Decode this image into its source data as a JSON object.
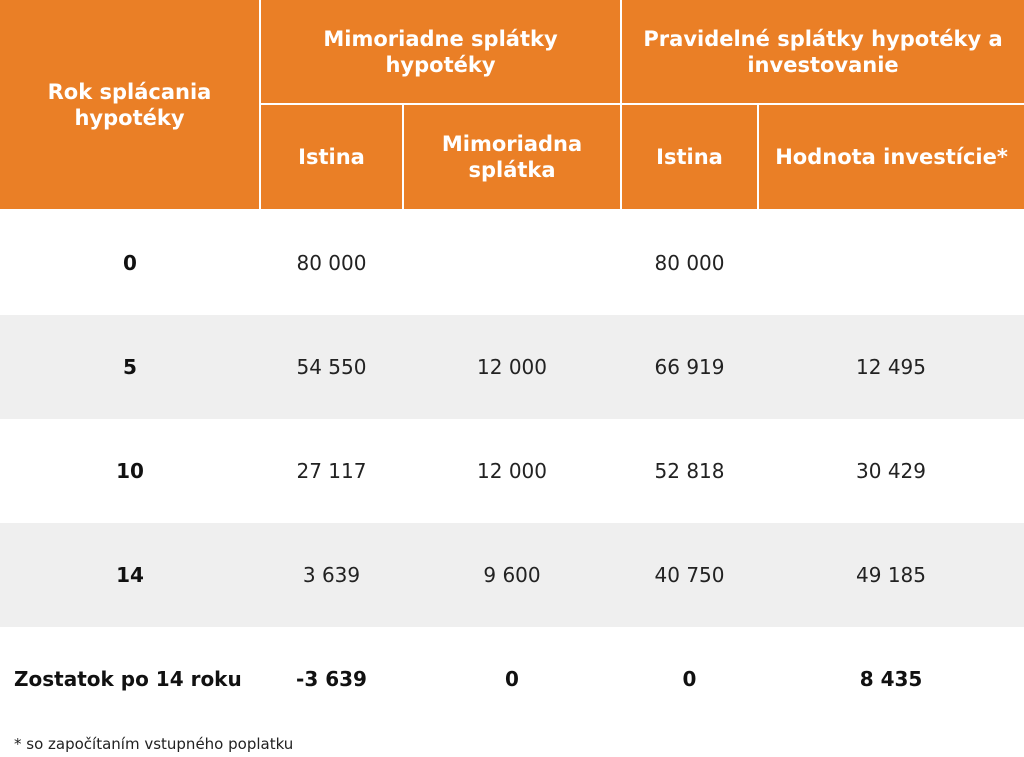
{
  "table": {
    "headers": {
      "year_col": "Rok splácania hypotéky",
      "group_extra": "Mimoriadne splátky hypotéky",
      "group_regular": "Pravidelné splátky hypotéky a investovanie",
      "sub_principal_extra": "Istina",
      "sub_extra_payment": "Mimoriadna splátka",
      "sub_principal_regular": "Istina",
      "sub_investment_value": "Hodnota investície*"
    },
    "rows": [
      {
        "year": "0",
        "principal_extra": "80 000",
        "extra_payment": "",
        "principal_regular": "80 000",
        "investment_value": ""
      },
      {
        "year": "5",
        "principal_extra": "54 550",
        "extra_payment": "12 000",
        "principal_regular": "66 919",
        "investment_value": "12 495"
      },
      {
        "year": "10",
        "principal_extra": "27 117",
        "extra_payment": "12 000",
        "principal_regular": "52 818",
        "investment_value": "30 429"
      },
      {
        "year": "14",
        "principal_extra": "3 639",
        "extra_payment": "9 600",
        "principal_regular": "40 750",
        "investment_value": "49 185"
      }
    ],
    "summary": {
      "label": "Zostatok po 14 roku",
      "principal_extra": "-3 639",
      "extra_payment": "0",
      "principal_regular": "0",
      "investment_value": "8 435"
    }
  },
  "footnote": "* so započítaním vstupného poplatku",
  "colors": {
    "header_bg": "#ea7f26",
    "row_alt_bg": "#efefef",
    "negative": "#e8241c",
    "positive": "#2e9d3f"
  }
}
